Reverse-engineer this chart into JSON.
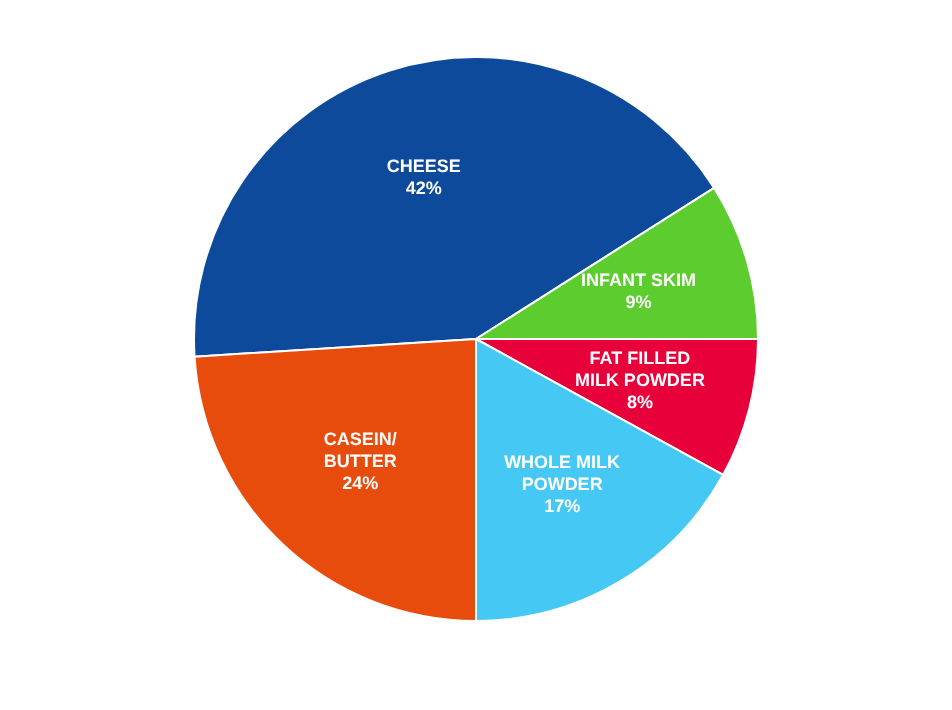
{
  "chart_data": {
    "type": "pie",
    "categories": [
      "CHEESE",
      "INFANT SKIM",
      "FAT FILLED MILK POWDER",
      "WHOLE MILK POWDER",
      "CASEIN/ BUTTER"
    ],
    "values": [
      42,
      9,
      8,
      17,
      24
    ],
    "colors": [
      "#0d4a9c",
      "#5ccc2e",
      "#e8003a",
      "#46c8f5",
      "#e84c0c"
    ],
    "value_labels": [
      "42%",
      "9%",
      "8%",
      "17%",
      "24%"
    ],
    "legend": false
  }
}
